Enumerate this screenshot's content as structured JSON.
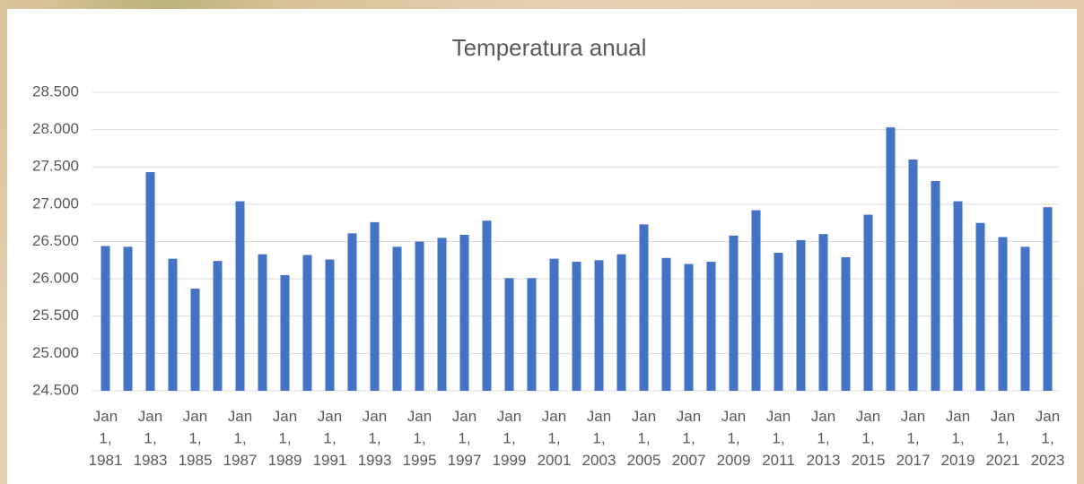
{
  "chart_data": {
    "type": "bar",
    "title": "Temperatura anual",
    "categories": [
      "Jan 1, 1981",
      null,
      "Jan 1, 1983",
      null,
      "Jan 1, 1985",
      null,
      "Jan 1, 1987",
      null,
      "Jan 1, 1989",
      null,
      "Jan 1, 1991",
      null,
      "Jan 1, 1993",
      null,
      "Jan 1, 1995",
      null,
      "Jan 1, 1997",
      null,
      "Jan 1, 1999",
      null,
      "Jan 1, 2001",
      null,
      "Jan 1, 2003",
      null,
      "Jan 1, 2005",
      null,
      "Jan 1, 2007",
      null,
      "Jan 1, 2009",
      null,
      "Jan 1, 2011",
      null,
      "Jan 1, 2013",
      null,
      "Jan 1, 2015",
      null,
      "Jan 1, 2017",
      null,
      "Jan 1, 2019",
      null,
      "Jan 1, 2021",
      null,
      "Jan 1, 2023"
    ],
    "values": [
      26.44,
      26.43,
      27.43,
      26.27,
      25.87,
      26.24,
      27.04,
      26.33,
      26.05,
      26.32,
      26.26,
      26.61,
      26.76,
      26.43,
      26.5,
      26.55,
      26.59,
      26.78,
      26.01,
      26.01,
      26.27,
      26.23,
      26.25,
      26.33,
      26.73,
      26.28,
      26.2,
      26.23,
      26.58,
      26.92,
      26.35,
      26.52,
      26.6,
      26.29,
      26.86,
      28.03,
      27.6,
      27.31,
      27.04,
      26.75,
      26.56,
      26.43,
      26.96
    ],
    "color": "#4472c4",
    "ylim": [
      24.5,
      28.5
    ],
    "yticks": [
      {
        "value": 24.5,
        "label": "24.500"
      },
      {
        "value": 25,
        "label": "25.000"
      },
      {
        "value": 25.5,
        "label": "25.500"
      },
      {
        "value": 26,
        "label": "26.000"
      },
      {
        "value": 26.5,
        "label": "26.500"
      },
      {
        "value": 27,
        "label": "27.000"
      },
      {
        "value": 27.5,
        "label": "27.500"
      },
      {
        "value": 28,
        "label": "28.000"
      },
      {
        "value": 28.5,
        "label": "28.500"
      }
    ],
    "grid": true
  }
}
